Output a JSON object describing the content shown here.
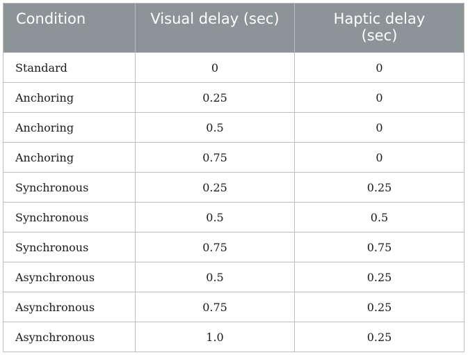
{
  "table": {
    "headers": [
      "Condition",
      "Visual delay (sec)",
      "Haptic delay\n(sec)"
    ],
    "header_line1": [
      "Condition",
      "Visual delay (sec)",
      "Haptic delay"
    ],
    "header_line2": [
      "",
      "",
      "(sec)"
    ],
    "rows": [
      {
        "condition": "Standard",
        "visual": "0",
        "haptic": "0"
      },
      {
        "condition": "Anchoring",
        "visual": "0.25",
        "haptic": "0"
      },
      {
        "condition": "Anchoring",
        "visual": "0.5",
        "haptic": "0"
      },
      {
        "condition": "Anchoring",
        "visual": "0.75",
        "haptic": "0"
      },
      {
        "condition": "Synchronous",
        "visual": "0.25",
        "haptic": "0.25"
      },
      {
        "condition": "Synchronous",
        "visual": "0.5",
        "haptic": "0.5"
      },
      {
        "condition": "Synchronous",
        "visual": "0.75",
        "haptic": "0.75"
      },
      {
        "condition": "Asynchronous",
        "visual": "0.5",
        "haptic": "0.25"
      },
      {
        "condition": "Asynchronous",
        "visual": "0.75",
        "haptic": "0.25"
      },
      {
        "condition": "Asynchronous",
        "visual": "1.0",
        "haptic": "0.25"
      }
    ],
    "colors": {
      "header_bg": "#8c9498",
      "header_text": "#ffffff",
      "border": "#b9bec1",
      "cell_text": "#1a1a1a"
    }
  }
}
